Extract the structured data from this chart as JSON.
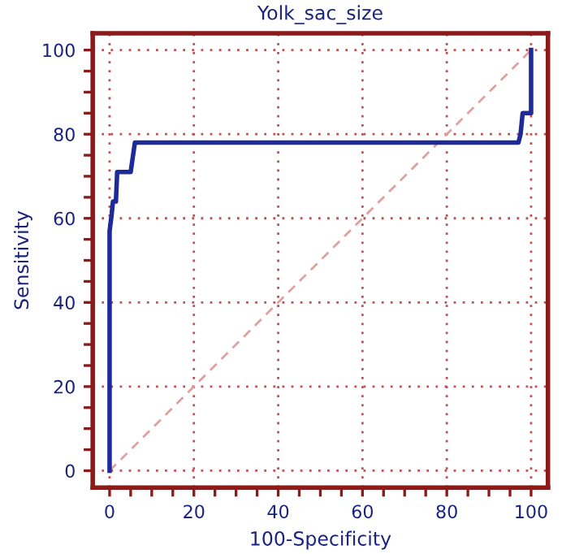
{
  "chart_data": {
    "type": "step",
    "title": "Yolk_sac_size",
    "xlabel": "100-Specificity",
    "ylabel": "Sensitivity",
    "xlim": [
      -4,
      104
    ],
    "ylim": [
      -4,
      104
    ],
    "xticks": [
      0,
      {
        "value": 5,
        "label": null
      },
      {
        "value": 10,
        "label": null
      },
      {
        "value": 15,
        "label": null
      },
      20,
      {
        "value": 25,
        "label": null
      },
      {
        "value": 30,
        "label": null
      },
      {
        "value": 35,
        "label": null
      },
      40,
      {
        "value": 45,
        "label": null
      },
      {
        "value": 50,
        "label": null
      },
      {
        "value": 55,
        "label": null
      },
      60,
      {
        "value": 65,
        "label": null
      },
      {
        "value": 70,
        "label": null
      },
      {
        "value": 75,
        "label": null
      },
      80,
      {
        "value": 85,
        "label": null
      },
      {
        "value": 90,
        "label": null
      },
      {
        "value": 95,
        "label": null
      },
      100
    ],
    "yticks": [
      0,
      {
        "value": 5,
        "label": null
      },
      {
        "value": 10,
        "label": null
      },
      {
        "value": 15,
        "label": null
      },
      20,
      {
        "value": 25,
        "label": null
      },
      {
        "value": 30,
        "label": null
      },
      {
        "value": 35,
        "label": null
      },
      40,
      {
        "value": 45,
        "label": null
      },
      {
        "value": 50,
        "label": null
      },
      {
        "value": 55,
        "label": null
      },
      60,
      {
        "value": 65,
        "label": null
      },
      {
        "value": 70,
        "label": null
      },
      {
        "value": 75,
        "label": null
      },
      80,
      {
        "value": 85,
        "label": null
      },
      {
        "value": 90,
        "label": null
      },
      {
        "value": 95,
        "label": null
      },
      100
    ],
    "grid": true,
    "marker": "none",
    "series": [
      {
        "color": "#1f2a9a",
        "line_style": "solid",
        "x": [
          0,
          0,
          0.5,
          0.8,
          1.5,
          1.8,
          5,
          6,
          97,
          97.5,
          98,
          100,
          100
        ],
        "values": [
          0,
          57,
          61,
          64,
          64,
          71,
          71,
          78,
          78,
          80,
          85,
          85,
          100
        ]
      },
      {
        "type": "line",
        "color": "#e0a0a0",
        "line_style": "dashed",
        "x": [
          0,
          100
        ],
        "values": [
          0,
          100
        ]
      }
    ]
  }
}
